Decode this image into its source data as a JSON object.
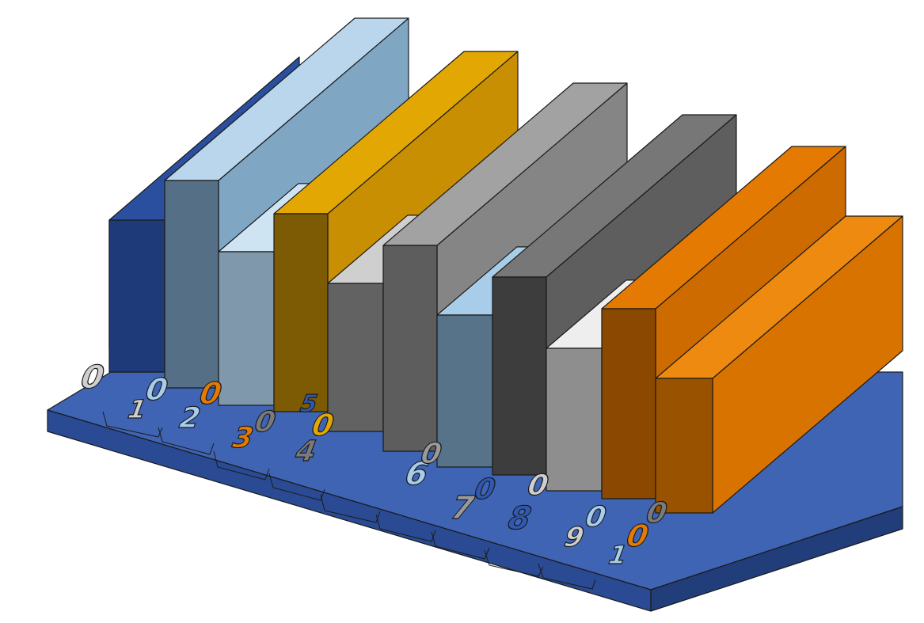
{
  "scene": {
    "background": "#ffffff",
    "base_color_top": "#3f64b4",
    "base_color_side": "#213d7a",
    "base_color_front": "#2a4b93"
  },
  "blocks": [
    {
      "name": "block-blue",
      "color_top": "#2f58b0",
      "color_front": "#1f3a78",
      "color_side": "#2a4f9e"
    },
    {
      "name": "block-light-blue",
      "color_top": "#b9d6ec",
      "color_front": "#556f86",
      "color_side": "#7fa6c3"
    },
    {
      "name": "block-light-blue-low",
      "color_top": "#cfe4f3",
      "color_front": "#7f98ab",
      "color_side": "#9fbfd6"
    },
    {
      "name": "block-yellow",
      "color_top": "#e3a703",
      "color_front": "#7d5a04",
      "color_side": "#c98f02"
    },
    {
      "name": "block-gray-low",
      "color_top": "#cfcfcf",
      "color_front": "#626262",
      "color_side": "#8c8c8c"
    },
    {
      "name": "block-gray",
      "color_top": "#a2a2a2",
      "color_front": "#5d5d5d",
      "color_side": "#858585"
    },
    {
      "name": "block-light-blue-low-2",
      "color_top": "#a8cde8",
      "color_front": "#56738a",
      "color_side": "#86aac6"
    },
    {
      "name": "block-dark-gray",
      "color_top": "#777777",
      "color_front": "#3d3d3d",
      "color_side": "#5e5e5e"
    },
    {
      "name": "block-white-low",
      "color_top": "#eeeeee",
      "color_front": "#8e8e8e",
      "color_side": "#bdbdbd"
    },
    {
      "name": "block-orange",
      "color_top": "#e57a02",
      "color_front": "#8a4800",
      "color_side": "#cd6a00"
    },
    {
      "name": "block-orange-low",
      "color_top": "#ef8a10",
      "color_front": "#995300",
      "color_side": "#d97300"
    }
  ],
  "digits": [
    {
      "glyph": "0",
      "color": "#cfcfcf"
    },
    {
      "glyph": "1",
      "color": "#cfcfcf"
    },
    {
      "glyph": "0",
      "color": "#a8cde8"
    },
    {
      "glyph": "2",
      "color": "#a8cde8"
    },
    {
      "glyph": "0",
      "color": "#e57a02"
    },
    {
      "glyph": "3",
      "color": "#e57a02"
    },
    {
      "glyph": "0",
      "color": "#7a7a7a"
    },
    {
      "glyph": "4",
      "color": "#7a7a7a"
    },
    {
      "glyph": "0",
      "color": "#e3a703"
    },
    {
      "glyph": "5",
      "color": "#2f58b0"
    },
    {
      "glyph": "6",
      "color": "#a8cde8"
    },
    {
      "glyph": "0",
      "color": "#9a9a9a"
    },
    {
      "glyph": "7",
      "color": "#9a9a9a"
    },
    {
      "glyph": "0",
      "color": "#2f58b0"
    },
    {
      "glyph": "8",
      "color": "#2f58b0"
    },
    {
      "glyph": "0",
      "color": "#cfcfcf"
    },
    {
      "glyph": "0",
      "color": "#a8cde8"
    },
    {
      "glyph": "9",
      "color": "#cfcfcf"
    },
    {
      "glyph": "0",
      "color": "#e57a02"
    },
    {
      "glyph": "1",
      "color": "#a8cde8"
    },
    {
      "glyph": "0",
      "color": "#7a7a7a"
    }
  ]
}
